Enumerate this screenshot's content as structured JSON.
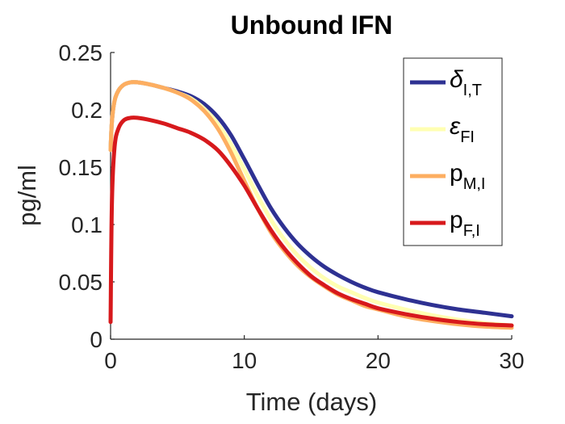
{
  "chart_data": {
    "type": "line",
    "title": "Unbound IFN",
    "xlabel": "Time (days)",
    "ylabel": "pg/ml",
    "xlim": [
      0,
      30
    ],
    "ylim": [
      0,
      0.25
    ],
    "xticks": [
      0,
      10,
      20,
      30
    ],
    "xtick_labels": [
      "0",
      "10",
      "20",
      "30"
    ],
    "yticks": [
      0,
      0.05,
      0.1,
      0.15,
      0.2,
      0.25
    ],
    "ytick_labels": [
      "0",
      "0.05",
      "0.1",
      "0.15",
      "0.2",
      "0.25"
    ],
    "grid": false,
    "legend_position": "top-right",
    "x": [
      0,
      0.1,
      0.3,
      0.6,
      1,
      1.5,
      2,
      3,
      4,
      5,
      6,
      7,
      8,
      9,
      10,
      11,
      12,
      13,
      14,
      15,
      16,
      17,
      18,
      19,
      20,
      22,
      24,
      26,
      28,
      30
    ],
    "series": [
      {
        "name": "δ_I,T",
        "label_main": "δ",
        "label_sub": "I,T",
        "color": "#2e3192",
        "values": [
          0.165,
          0.19,
          0.208,
          0.217,
          0.222,
          0.224,
          0.224,
          0.222,
          0.219,
          0.216,
          0.212,
          0.205,
          0.194,
          0.178,
          0.157,
          0.135,
          0.114,
          0.097,
          0.083,
          0.072,
          0.063,
          0.056,
          0.05,
          0.045,
          0.041,
          0.035,
          0.03,
          0.026,
          0.023,
          0.02
        ]
      },
      {
        "name": "ε_FI",
        "label_main": "ε",
        "label_sub": "FI",
        "color": "#ffffb2",
        "values": [
          0.165,
          0.19,
          0.208,
          0.217,
          0.222,
          0.224,
          0.224,
          0.222,
          0.219,
          0.215,
          0.21,
          0.201,
          0.188,
          0.17,
          0.148,
          0.125,
          0.104,
          0.087,
          0.073,
          0.062,
          0.053,
          0.046,
          0.041,
          0.036,
          0.032,
          0.026,
          0.021,
          0.017,
          0.014,
          0.012
        ]
      },
      {
        "name": "p_M,I",
        "label_main": "p",
        "label_sub": "M,I",
        "color": "#fdae61",
        "values": [
          0.165,
          0.19,
          0.208,
          0.217,
          0.222,
          0.224,
          0.224,
          0.222,
          0.219,
          0.215,
          0.209,
          0.199,
          0.184,
          0.163,
          0.138,
          0.114,
          0.093,
          0.077,
          0.064,
          0.054,
          0.046,
          0.039,
          0.034,
          0.029,
          0.026,
          0.02,
          0.016,
          0.013,
          0.011,
          0.01
        ]
      },
      {
        "name": "p_F,I",
        "label_main": "p",
        "label_sub": "F,I",
        "color": "#d7191c",
        "values": [
          0.015,
          0.12,
          0.168,
          0.184,
          0.191,
          0.193,
          0.193,
          0.191,
          0.188,
          0.184,
          0.18,
          0.174,
          0.165,
          0.151,
          0.134,
          0.114,
          0.095,
          0.079,
          0.066,
          0.055,
          0.047,
          0.04,
          0.035,
          0.031,
          0.027,
          0.022,
          0.018,
          0.015,
          0.013,
          0.012
        ]
      }
    ]
  }
}
